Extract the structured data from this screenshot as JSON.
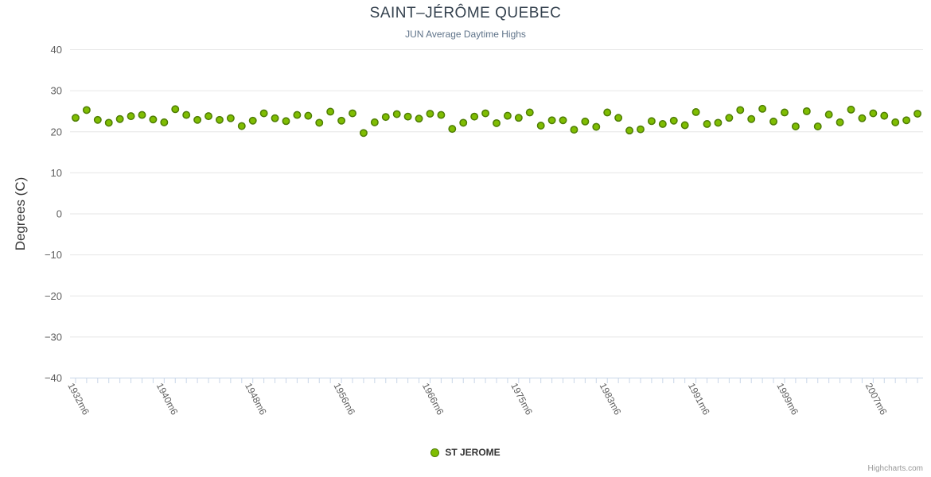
{
  "header": {
    "title": "SAINT–JÉRÔME QUEBEC",
    "subtitle": "JUN Average Daytime Highs"
  },
  "legend": {
    "series_label": "ST JEROME"
  },
  "credits": "Highcharts.com",
  "colors": {
    "grid": "#e6e6e6",
    "axis_line": "#c9d6e8",
    "tick": "#c9d6e8",
    "axis_label": "#5e5e5e",
    "marker_fill": "#7fbd02",
    "marker_stroke": "#4e7d04"
  },
  "chart_data": {
    "type": "scatter",
    "title": "SAINT–JÉRÔME QUEBEC",
    "subtitle": "JUN Average Daytime Highs",
    "xlabel": "",
    "ylabel": "Degrees (C)",
    "ylim": [
      -40,
      40
    ],
    "y_tick_step": 10,
    "y_tick_values": [
      40,
      30,
      20,
      10,
      0,
      -10,
      -20,
      -30,
      -40
    ],
    "y_tick_labels": [
      "40",
      "30",
      "20",
      "10",
      "0",
      "−10",
      "−20",
      "−30",
      "−40"
    ],
    "x_tick_labels": [
      "1932m6",
      "1940m6",
      "1948m6",
      "1956m6",
      "1966m6",
      "1975m6",
      "1983m6",
      "1991m6",
      "1999m6",
      "2007m6"
    ],
    "x_tick_label_indices": [
      0,
      8,
      16,
      24,
      32,
      40,
      48,
      56,
      64,
      72
    ],
    "grid": "horizontal-only",
    "legend_position": "bottom-center",
    "series": [
      {
        "name": "ST JEROME",
        "marker": "circle",
        "values": [
          23.4,
          25.3,
          22.9,
          22.2,
          23.1,
          23.8,
          24.1,
          23.0,
          22.3,
          25.5,
          24.1,
          22.9,
          23.8,
          22.9,
          23.3,
          21.4,
          22.7,
          24.5,
          23.3,
          22.6,
          24.1,
          23.9,
          22.2,
          24.9,
          22.7,
          24.5,
          19.7,
          22.3,
          23.6,
          24.3,
          23.7,
          23.2,
          24.4,
          24.1,
          20.7,
          22.2,
          23.7,
          24.5,
          22.1,
          23.9,
          23.4,
          24.7,
          21.5,
          22.8,
          22.8,
          20.5,
          22.5,
          21.2,
          24.7,
          23.4,
          20.3,
          20.6,
          22.6,
          21.9,
          22.7,
          21.6,
          24.8,
          21.9,
          22.2,
          23.4,
          25.3,
          23.1,
          25.6,
          22.5,
          24.7,
          21.3,
          25.0,
          21.3,
          24.2,
          22.3,
          25.4,
          23.3,
          24.5,
          23.9,
          22.3,
          22.8,
          24.4
        ]
      }
    ]
  }
}
